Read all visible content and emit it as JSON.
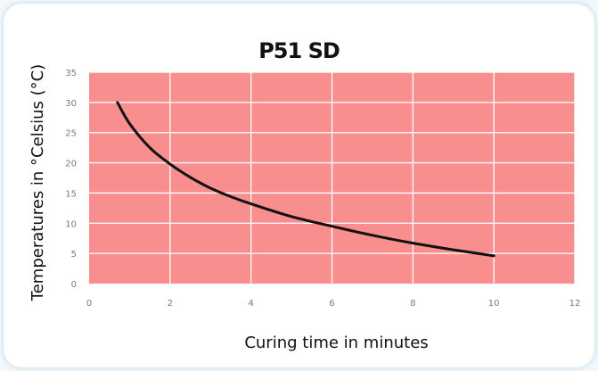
{
  "chart_data": {
    "type": "line",
    "title": "P51 SD",
    "xlabel": "Curing time in minutes",
    "ylabel": "Temperatures in °Celsius (°C)",
    "xlim": [
      0,
      12
    ],
    "ylim": [
      0,
      35
    ],
    "x_ticks": [
      0,
      2,
      4,
      6,
      8,
      10,
      12
    ],
    "y_ticks": [
      0,
      5,
      10,
      15,
      20,
      25,
      30,
      35
    ],
    "grid": true,
    "legend": "none",
    "series": [
      {
        "x": [
          0.7,
          1,
          1.5,
          2,
          2.5,
          3,
          3.5,
          4,
          5,
          6,
          7,
          8,
          9,
          10
        ],
        "y": [
          30,
          26.5,
          22.5,
          19.8,
          17.6,
          15.8,
          14.4,
          13.2,
          11.1,
          9.5,
          8.0,
          6.7,
          5.6,
          4.6
        ]
      }
    ],
    "colors": {
      "plot_background": "#f98e8e",
      "grid": "#ffffff",
      "line": "#111111"
    }
  }
}
